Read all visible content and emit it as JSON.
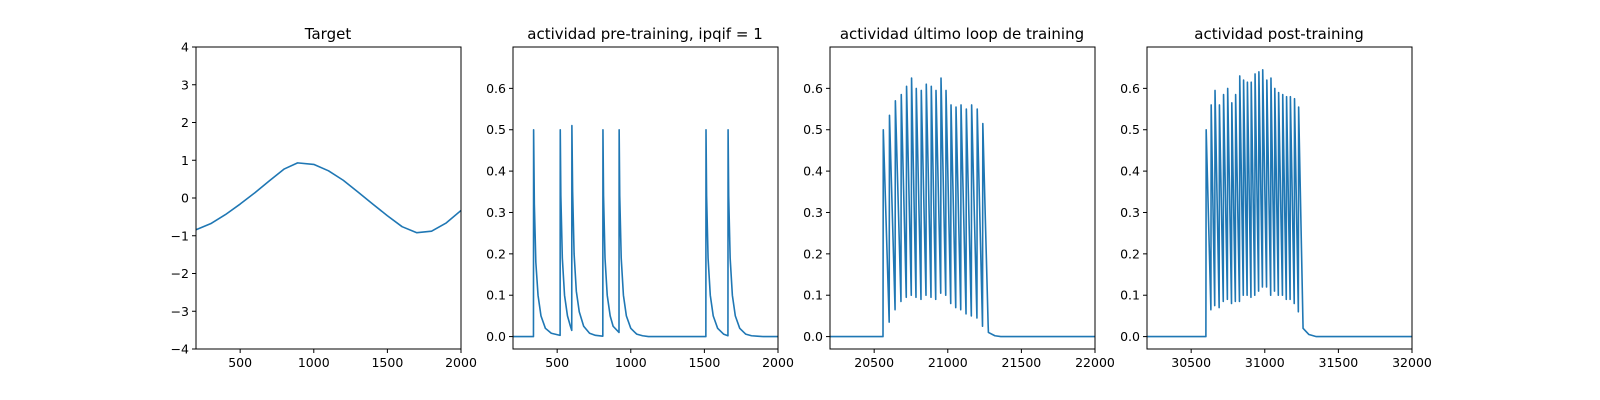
{
  "figure": {
    "background": "#ffffff",
    "line_color": "#1f77b4"
  },
  "chart_data": [
    {
      "type": "line",
      "title": "Target",
      "xlabel": "",
      "ylabel": "",
      "xlim": [
        200,
        2000
      ],
      "ylim": [
        -4,
        4
      ],
      "xticks": [
        500,
        1000,
        1500,
        2000
      ],
      "yticks": [
        -4,
        -3,
        -2,
        -1,
        0,
        1,
        2,
        3,
        4
      ],
      "xtick_labels": [
        "500",
        "1000",
        "1500",
        "2000"
      ],
      "ytick_labels": [
        "−4",
        "−3",
        "−2",
        "−1",
        "0",
        "1",
        "2",
        "3",
        "4"
      ],
      "grid": false,
      "series": [
        {
          "x": [
            200,
            300,
            400,
            500,
            600,
            700,
            800,
            890,
            1000,
            1100,
            1200,
            1300,
            1400,
            1500,
            1600,
            1700,
            1800,
            1900,
            2000
          ],
          "values": [
            -0.84,
            -0.68,
            -0.44,
            -0.16,
            0.14,
            0.46,
            0.77,
            0.93,
            0.89,
            0.72,
            0.47,
            0.16,
            -0.16,
            -0.47,
            -0.76,
            -0.92,
            -0.88,
            -0.66,
            -0.33
          ]
        }
      ]
    },
    {
      "type": "line",
      "title": "actividad pre-training, ipqif = 1",
      "xlabel": "",
      "ylabel": "",
      "xlim": [
        200,
        2000
      ],
      "ylim": [
        -0.03,
        0.7
      ],
      "xticks": [
        500,
        1000,
        1500,
        2000
      ],
      "yticks": [
        0.0,
        0.1,
        0.2,
        0.3,
        0.4,
        0.5,
        0.6
      ],
      "xtick_labels": [
        "500",
        "1000",
        "1500",
        "2000"
      ],
      "ytick_labels": [
        "0.0",
        "0.1",
        "0.2",
        "0.3",
        "0.4",
        "0.5",
        "0.6"
      ],
      "grid": false,
      "series": [
        {
          "x": [
            200,
            339,
            340,
            345,
            355,
            370,
            390,
            420,
            460,
            520,
            521,
            525,
            535,
            550,
            570,
            590,
            599,
            600,
            605,
            615,
            630,
            650,
            680,
            720,
            760,
            810,
            811,
            815,
            825,
            840,
            860,
            880,
            920,
            921,
            925,
            935,
            950,
            970,
            1000,
            1040,
            1080,
            1120,
            1500,
            1510,
            1511,
            1515,
            1525,
            1540,
            1560,
            1590,
            1630,
            1660,
            1661,
            1665,
            1675,
            1690,
            1710,
            1740,
            1780,
            1820,
            1860,
            1900,
            2000
          ],
          "values": [
            0.0,
            0.0,
            0.5,
            0.32,
            0.18,
            0.1,
            0.05,
            0.02,
            0.008,
            0.003,
            0.5,
            0.34,
            0.19,
            0.1,
            0.05,
            0.025,
            0.015,
            0.51,
            0.35,
            0.2,
            0.11,
            0.06,
            0.025,
            0.008,
            0.003,
            0.001,
            0.5,
            0.34,
            0.19,
            0.1,
            0.05,
            0.025,
            0.01,
            0.5,
            0.34,
            0.19,
            0.1,
            0.05,
            0.02,
            0.006,
            0.002,
            0.0,
            0.0,
            0.0,
            0.5,
            0.34,
            0.19,
            0.1,
            0.05,
            0.02,
            0.006,
            0.002,
            0.5,
            0.34,
            0.19,
            0.1,
            0.05,
            0.02,
            0.006,
            0.002,
            0.001,
            0.0,
            0.0
          ]
        }
      ]
    },
    {
      "type": "line",
      "title": "actividad último loop de training",
      "xlabel": "",
      "ylabel": "",
      "xlim": [
        20200,
        22000
      ],
      "ylim": [
        -0.03,
        0.7
      ],
      "xticks": [
        20500,
        21000,
        21500,
        22000
      ],
      "yticks": [
        0.0,
        0.1,
        0.2,
        0.3,
        0.4,
        0.5,
        0.6
      ],
      "xtick_labels": [
        "20500",
        "21000",
        "21500",
        "22000"
      ],
      "ytick_labels": [
        "0.0",
        "0.1",
        "0.2",
        "0.3",
        "0.4",
        "0.5",
        "0.6"
      ],
      "grid": false,
      "series": [
        {
          "x": [
            20200,
            20560,
            20562,
            20602,
            20604,
            20642,
            20644,
            20682,
            20684,
            20718,
            20720,
            20752,
            20754,
            20784,
            20786,
            20818,
            20820,
            20852,
            20854,
            20886,
            20888,
            20918,
            20920,
            20952,
            20954,
            20986,
            20988,
            21020,
            21022,
            21054,
            21056,
            21088,
            21090,
            21124,
            21126,
            21160,
            21162,
            21198,
            21200,
            21236,
            21238,
            21274,
            21276,
            21320,
            21360,
            21420,
            21500,
            22000
          ],
          "values": [
            0.0,
            0.0,
            0.5,
            0.035,
            0.535,
            0.065,
            0.57,
            0.085,
            0.585,
            0.095,
            0.605,
            0.1,
            0.625,
            0.095,
            0.6,
            0.09,
            0.595,
            0.1,
            0.61,
            0.095,
            0.605,
            0.09,
            0.595,
            0.105,
            0.625,
            0.1,
            0.595,
            0.08,
            0.56,
            0.07,
            0.555,
            0.065,
            0.56,
            0.055,
            0.55,
            0.05,
            0.56,
            0.045,
            0.55,
            0.025,
            0.515,
            0.03,
            0.01,
            0.002,
            0.0,
            0.0,
            0.0,
            0.0
          ]
        }
      ]
    },
    {
      "type": "line",
      "title": "actividad post-training",
      "xlabel": "",
      "ylabel": "",
      "xlim": [
        30200,
        32000
      ],
      "ylim": [
        -0.03,
        0.7
      ],
      "xticks": [
        30500,
        31000,
        31500,
        32000
      ],
      "yticks": [
        0.0,
        0.1,
        0.2,
        0.3,
        0.4,
        0.5,
        0.6
      ],
      "xtick_labels": [
        "30500",
        "31000",
        "31500",
        "32000"
      ],
      "ytick_labels": [
        "0.0",
        "0.1",
        "0.2",
        "0.3",
        "0.4",
        "0.5",
        "0.6"
      ],
      "grid": false,
      "series": [
        {
          "x": [
            30200,
            30600,
            30602,
            30634,
            30636,
            30660,
            30662,
            30690,
            30692,
            30718,
            30720,
            30746,
            30748,
            30774,
            30776,
            30800,
            30802,
            30828,
            30830,
            30854,
            30856,
            30880,
            30882,
            30906,
            30908,
            30932,
            30934,
            30958,
            30960,
            30984,
            30986,
            31012,
            31014,
            31040,
            31042,
            31066,
            31068,
            31092,
            31094,
            31120,
            31122,
            31146,
            31148,
            31172,
            31174,
            31200,
            31202,
            31228,
            31230,
            31260,
            31300,
            31350,
            31420,
            31500,
            32000
          ],
          "values": [
            0.0,
            0.0,
            0.5,
            0.065,
            0.56,
            0.075,
            0.595,
            0.07,
            0.56,
            0.085,
            0.585,
            0.09,
            0.6,
            0.08,
            0.565,
            0.085,
            0.585,
            0.085,
            0.63,
            0.1,
            0.62,
            0.1,
            0.615,
            0.095,
            0.615,
            0.1,
            0.635,
            0.11,
            0.64,
            0.12,
            0.645,
            0.12,
            0.62,
            0.1,
            0.625,
            0.11,
            0.6,
            0.1,
            0.59,
            0.1,
            0.585,
            0.09,
            0.58,
            0.09,
            0.58,
            0.08,
            0.575,
            0.06,
            0.555,
            0.02,
            0.005,
            0.0,
            0.0,
            0.0,
            0.0
          ]
        }
      ]
    }
  ]
}
